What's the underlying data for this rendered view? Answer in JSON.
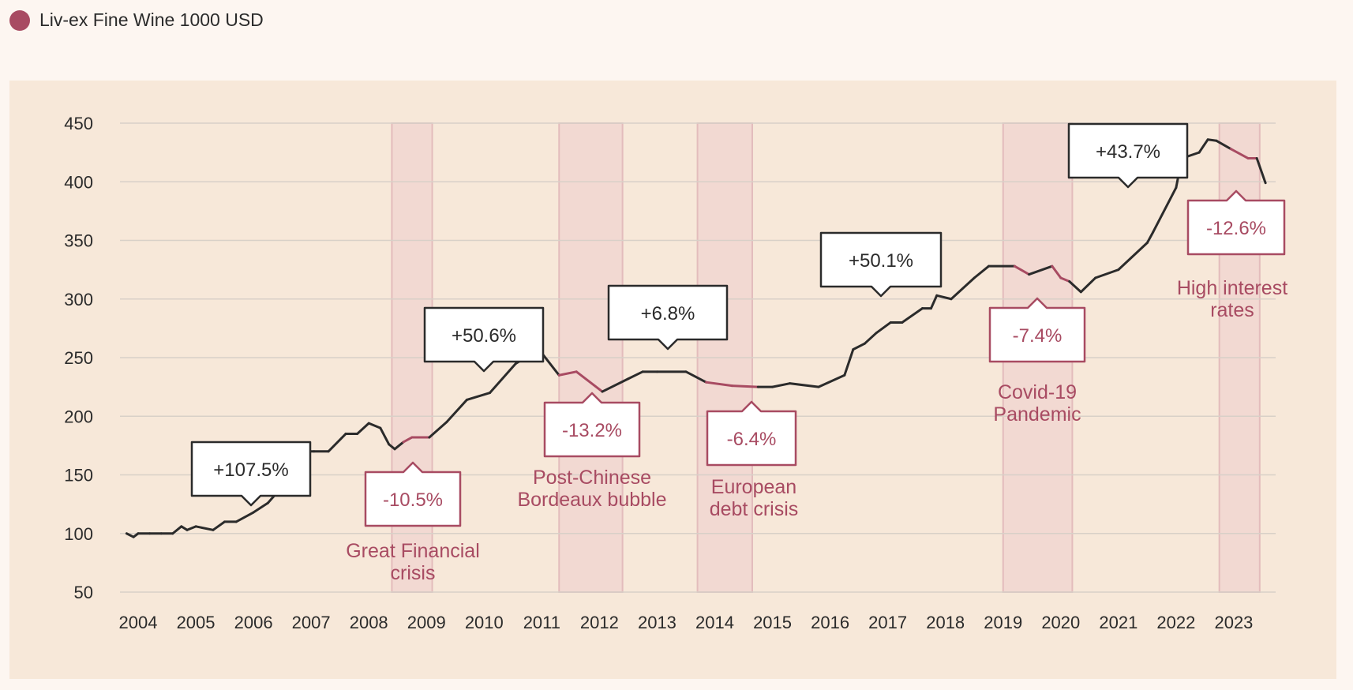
{
  "legend": {
    "label": "Liv-ex Fine Wine 1000 USD",
    "color": "#a84b62"
  },
  "colors": {
    "up_line": "#2b2b2b",
    "down_line": "#a84b62",
    "band_fill": "#f2d9d2",
    "band_stroke": "#e3bcbc",
    "grid": "#d8d0c8",
    "panel_bg": "#f7e8d9",
    "page_bg": "#fdf6f1"
  },
  "chart_data": {
    "type": "line",
    "title": "",
    "xlabel": "",
    "ylabel": "",
    "ylim": [
      50,
      450
    ],
    "y_ticks": [
      50,
      100,
      150,
      200,
      250,
      300,
      350,
      400,
      450
    ],
    "x_ticks": [
      "2004",
      "2005",
      "2006",
      "2007",
      "2008",
      "2009",
      "2010",
      "2011",
      "2012",
      "2013",
      "2014",
      "2015",
      "2016",
      "2017",
      "2018",
      "2019",
      "2020",
      "2021",
      "2022",
      "2023"
    ],
    "grid": true,
    "legend_position": "top-left",
    "series": [
      {
        "name": "Liv-ex Fine Wine 1000 USD",
        "x": [
          2003.8,
          2003.92,
          2004.0,
          2004.2,
          2004.4,
          2004.6,
          2004.75,
          2004.85,
          2005.0,
          2005.3,
          2005.5,
          2005.7,
          2006.0,
          2006.25,
          2006.5,
          2006.7,
          2006.9,
          2007.05,
          2007.3,
          2007.6,
          2007.8,
          2008.0,
          2008.2,
          2008.35,
          2008.45,
          2008.6,
          2008.75,
          2008.9,
          2009.05,
          2009.35,
          2009.7,
          2010.1,
          2010.55,
          2010.95,
          2011.3,
          2011.6,
          2012.05,
          2012.5,
          2012.75,
          2013.0,
          2013.5,
          2013.85,
          2014.3,
          2014.75,
          2015.0,
          2015.3,
          2015.8,
          2016.25,
          2016.4,
          2016.6,
          2016.8,
          2017.05,
          2017.25,
          2017.6,
          2017.75,
          2017.85,
          2018.1,
          2018.5,
          2018.75,
          2019.2,
          2019.45,
          2019.85,
          2020.0,
          2020.15,
          2020.35,
          2020.6,
          2021.0,
          2021.5,
          2021.6,
          2022.0,
          2022.1,
          2022.4,
          2022.55,
          2022.7,
          2022.95,
          2023.25,
          2023.4,
          2023.55
        ],
        "y": [
          100,
          97,
          100,
          100,
          100,
          100,
          106,
          103,
          106,
          103,
          110,
          110,
          118,
          126,
          140,
          152,
          170,
          170,
          170,
          185,
          185,
          194,
          190,
          176,
          172,
          178,
          182,
          182,
          182,
          195,
          214,
          220,
          245,
          257,
          235,
          238,
          221,
          232,
          238,
          238,
          238,
          229,
          226,
          225,
          225,
          228,
          225,
          235,
          257,
          262,
          271,
          280,
          280,
          292,
          292,
          303,
          300,
          318,
          328,
          328,
          321,
          328,
          318,
          315,
          306,
          318,
          325,
          348,
          357,
          395,
          420,
          425,
          436,
          435,
          428,
          420,
          420,
          399
        ]
      }
    ],
    "downturns": [
      {
        "from": 2008.4,
        "to": 2009.1,
        "label_lines": [
          "Great Financial",
          "crisis"
        ],
        "change": "-10.5%"
      },
      {
        "from": 2011.3,
        "to": 2012.4,
        "label_lines": [
          "Post-Chinese",
          "Bordeaux bubble"
        ],
        "change": "-13.2%"
      },
      {
        "from": 2013.7,
        "to": 2014.65,
        "label_lines": [
          "European",
          "debt crisis"
        ],
        "change": "-6.4%"
      },
      {
        "from": 2019.0,
        "to": 2020.2,
        "label_lines": [
          "Covid-19",
          "Pandemic"
        ],
        "change": "-7.4%"
      },
      {
        "from": 2022.75,
        "to": 2023.45,
        "label_lines": [
          "High interest",
          "rates"
        ],
        "change": "-12.6%"
      }
    ],
    "gains": [
      "+107.5%",
      "+50.6%",
      "+6.8%",
      "+50.1%",
      "+43.7%"
    ]
  }
}
